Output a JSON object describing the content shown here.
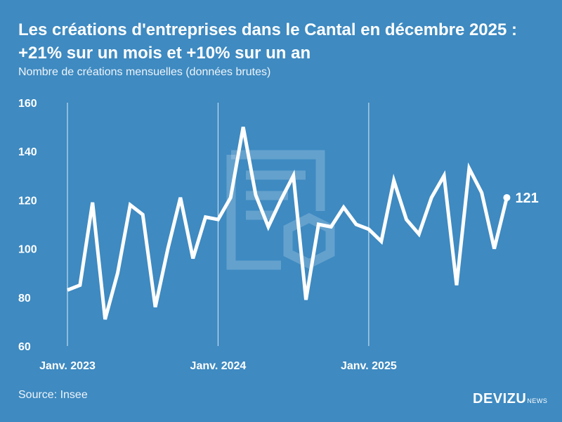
{
  "title": "Les créations d'entreprises dans le Cantal en décembre 2025 : +21% sur un mois et +10% sur un an",
  "subtitle": "Nombre de créations mensuelles (données brutes)",
  "source": "Source: Insee",
  "logo": {
    "text": "DEVIZU",
    "suffix": "NEWS"
  },
  "colors": {
    "background": "#3e8ac1",
    "line": "#ffffff"
  },
  "chart_data": {
    "type": "line",
    "title": "Les créations d'entreprises dans le Cantal en décembre 2025 : +21% sur un mois et +10% sur un an",
    "subtitle": "Nombre de créations mensuelles (données brutes)",
    "ylim": [
      60,
      160
    ],
    "yticks": [
      60,
      80,
      100,
      120,
      140,
      160
    ],
    "xtick_labels": [
      "Janv. 2023",
      "Janv. 2024",
      "Janv. 2025"
    ],
    "grid": "vertical lines at year starts",
    "x": [
      "2023-01",
      "2023-02",
      "2023-03",
      "2023-04",
      "2023-05",
      "2023-06",
      "2023-07",
      "2023-08",
      "2023-09",
      "2023-10",
      "2023-11",
      "2023-12",
      "2024-01",
      "2024-02",
      "2024-03",
      "2024-04",
      "2024-05",
      "2024-06",
      "2024-07",
      "2024-08",
      "2024-09",
      "2024-10",
      "2024-11",
      "2024-12",
      "2025-01",
      "2025-02",
      "2025-03",
      "2025-04",
      "2025-05",
      "2025-06",
      "2025-07",
      "2025-08",
      "2025-09",
      "2025-10",
      "2025-11",
      "2025-12"
    ],
    "values": [
      83,
      85,
      119,
      71,
      90,
      118,
      114,
      76,
      100,
      121,
      96,
      113,
      112,
      121,
      150,
      122,
      109,
      120,
      130,
      79,
      110,
      109,
      117,
      110,
      108,
      103,
      128,
      112,
      106,
      121,
      130,
      85,
      133,
      123,
      100,
      121
    ],
    "last_label": "121"
  }
}
